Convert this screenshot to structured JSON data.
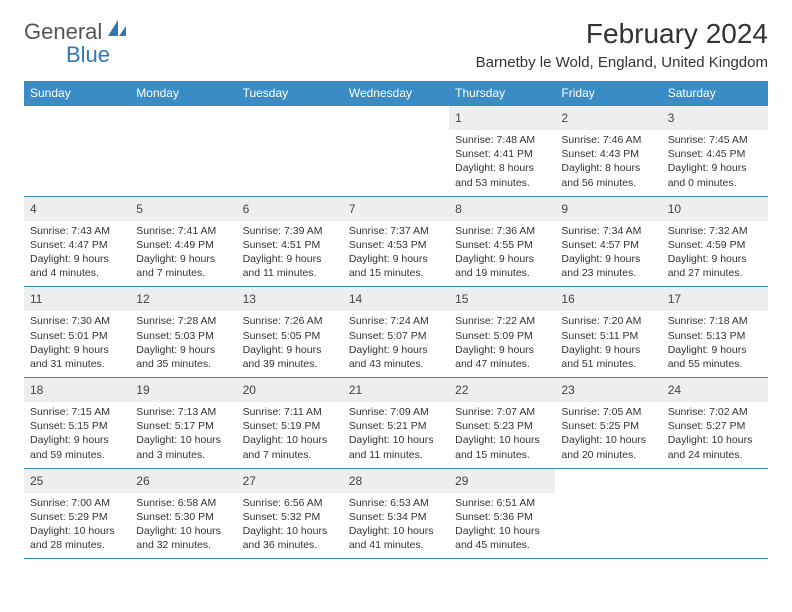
{
  "logo": {
    "text1": "General",
    "text2": "Blue"
  },
  "title": "February 2024",
  "location": "Barnetby le Wold, England, United Kingdom",
  "colors": {
    "header_bg": "#3a8dc4",
    "header_text": "#ffffff",
    "border": "#3a8dc4",
    "shaded_bg": "#eceef0",
    "text": "#333333",
    "logo_gray": "#6b6b6b",
    "logo_blue": "#2f78b5"
  },
  "daysOfWeek": [
    "Sunday",
    "Monday",
    "Tuesday",
    "Wednesday",
    "Thursday",
    "Friday",
    "Saturday"
  ],
  "weeks": [
    [
      null,
      null,
      null,
      null,
      {
        "d": "1",
        "sr": "7:48 AM",
        "ss": "4:41 PM",
        "dl": "8 hours and 53 minutes."
      },
      {
        "d": "2",
        "sr": "7:46 AM",
        "ss": "4:43 PM",
        "dl": "8 hours and 56 minutes."
      },
      {
        "d": "3",
        "sr": "7:45 AM",
        "ss": "4:45 PM",
        "dl": "9 hours and 0 minutes."
      }
    ],
    [
      {
        "d": "4",
        "sr": "7:43 AM",
        "ss": "4:47 PM",
        "dl": "9 hours and 4 minutes."
      },
      {
        "d": "5",
        "sr": "7:41 AM",
        "ss": "4:49 PM",
        "dl": "9 hours and 7 minutes."
      },
      {
        "d": "6",
        "sr": "7:39 AM",
        "ss": "4:51 PM",
        "dl": "9 hours and 11 minutes."
      },
      {
        "d": "7",
        "sr": "7:37 AM",
        "ss": "4:53 PM",
        "dl": "9 hours and 15 minutes."
      },
      {
        "d": "8",
        "sr": "7:36 AM",
        "ss": "4:55 PM",
        "dl": "9 hours and 19 minutes."
      },
      {
        "d": "9",
        "sr": "7:34 AM",
        "ss": "4:57 PM",
        "dl": "9 hours and 23 minutes."
      },
      {
        "d": "10",
        "sr": "7:32 AM",
        "ss": "4:59 PM",
        "dl": "9 hours and 27 minutes."
      }
    ],
    [
      {
        "d": "11",
        "sr": "7:30 AM",
        "ss": "5:01 PM",
        "dl": "9 hours and 31 minutes."
      },
      {
        "d": "12",
        "sr": "7:28 AM",
        "ss": "5:03 PM",
        "dl": "9 hours and 35 minutes."
      },
      {
        "d": "13",
        "sr": "7:26 AM",
        "ss": "5:05 PM",
        "dl": "9 hours and 39 minutes."
      },
      {
        "d": "14",
        "sr": "7:24 AM",
        "ss": "5:07 PM",
        "dl": "9 hours and 43 minutes."
      },
      {
        "d": "15",
        "sr": "7:22 AM",
        "ss": "5:09 PM",
        "dl": "9 hours and 47 minutes."
      },
      {
        "d": "16",
        "sr": "7:20 AM",
        "ss": "5:11 PM",
        "dl": "9 hours and 51 minutes."
      },
      {
        "d": "17",
        "sr": "7:18 AM",
        "ss": "5:13 PM",
        "dl": "9 hours and 55 minutes."
      }
    ],
    [
      {
        "d": "18",
        "sr": "7:15 AM",
        "ss": "5:15 PM",
        "dl": "9 hours and 59 minutes."
      },
      {
        "d": "19",
        "sr": "7:13 AM",
        "ss": "5:17 PM",
        "dl": "10 hours and 3 minutes."
      },
      {
        "d": "20",
        "sr": "7:11 AM",
        "ss": "5:19 PM",
        "dl": "10 hours and 7 minutes."
      },
      {
        "d": "21",
        "sr": "7:09 AM",
        "ss": "5:21 PM",
        "dl": "10 hours and 11 minutes."
      },
      {
        "d": "22",
        "sr": "7:07 AM",
        "ss": "5:23 PM",
        "dl": "10 hours and 15 minutes."
      },
      {
        "d": "23",
        "sr": "7:05 AM",
        "ss": "5:25 PM",
        "dl": "10 hours and 20 minutes."
      },
      {
        "d": "24",
        "sr": "7:02 AM",
        "ss": "5:27 PM",
        "dl": "10 hours and 24 minutes."
      }
    ],
    [
      {
        "d": "25",
        "sr": "7:00 AM",
        "ss": "5:29 PM",
        "dl": "10 hours and 28 minutes."
      },
      {
        "d": "26",
        "sr": "6:58 AM",
        "ss": "5:30 PM",
        "dl": "10 hours and 32 minutes."
      },
      {
        "d": "27",
        "sr": "6:56 AM",
        "ss": "5:32 PM",
        "dl": "10 hours and 36 minutes."
      },
      {
        "d": "28",
        "sr": "6:53 AM",
        "ss": "5:34 PM",
        "dl": "10 hours and 41 minutes."
      },
      {
        "d": "29",
        "sr": "6:51 AM",
        "ss": "5:36 PM",
        "dl": "10 hours and 45 minutes."
      },
      null,
      null
    ]
  ],
  "labels": {
    "sunrise": "Sunrise:",
    "sunset": "Sunset:",
    "daylight": "Daylight:"
  }
}
